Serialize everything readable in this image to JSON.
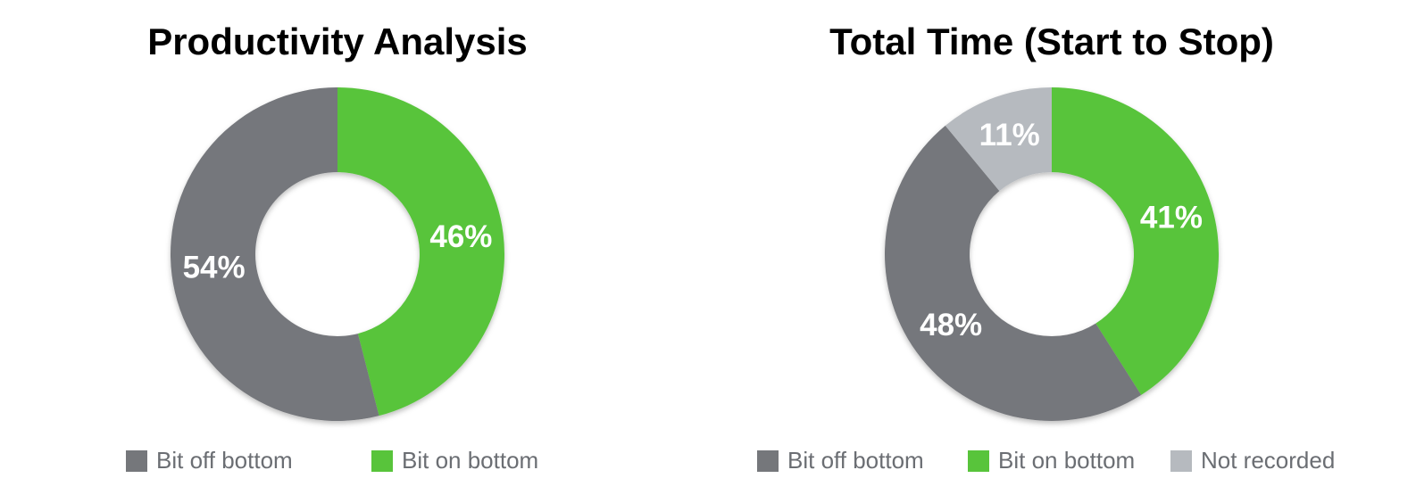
{
  "chart_data": [
    {
      "type": "pie",
      "title": "Productivity Analysis",
      "categories": [
        "Bit on bottom",
        "Bit off bottom"
      ],
      "values": [
        46,
        54
      ],
      "value_labels": [
        "46%",
        "54%"
      ],
      "colors": [
        "#58c43b",
        "#75777b"
      ]
    },
    {
      "type": "pie",
      "title": "Total Time (Start to Stop)",
      "categories": [
        "Bit on bottom",
        "Bit off bottom",
        "Not recorded"
      ],
      "values": [
        41,
        48,
        11
      ],
      "value_labels": [
        "41%",
        "48%",
        "11%"
      ],
      "colors": [
        "#58c43b",
        "#75777b",
        "#b6babf"
      ]
    }
  ]
}
